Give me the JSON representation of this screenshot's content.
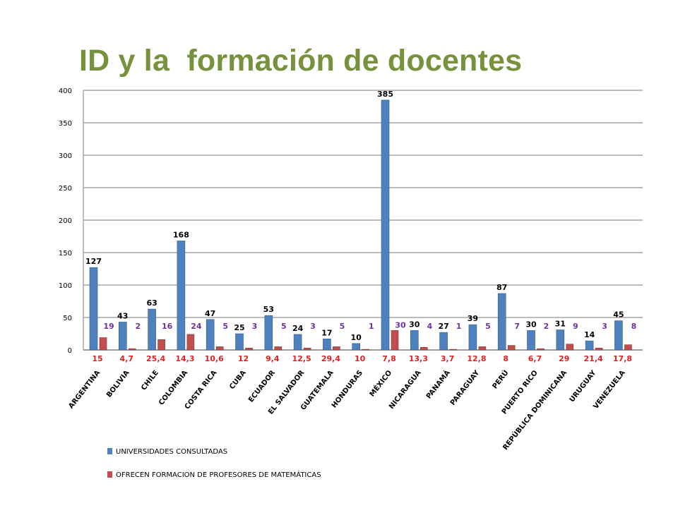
{
  "slide": {
    "title": "ID y la  formación de docentes"
  },
  "chart_data": {
    "type": "bar",
    "ylim": [
      0,
      400
    ],
    "yticks": [
      0,
      50,
      100,
      150,
      200,
      250,
      300,
      350,
      400
    ],
    "grid": true,
    "legend_position": "bottom-left",
    "categories": [
      "ARGENTINA",
      "BOLIVIA",
      "CHILE",
      "COLOMBIA",
      "COSTA RICA",
      "CUBA",
      "ECUADOR",
      "EL SALVADOR",
      "GUATEMALA",
      "HONDURAS",
      "MÉXICO",
      "NICARAGUA",
      "PANAMÁ",
      "PARAGUAY",
      "PERÚ",
      "PUERTO RICO",
      "REPÚBLICA DOMINICANA",
      "URUGUAY",
      "VENEZUELA"
    ],
    "series": [
      {
        "name": "UNIVERSIDADES  CONSULTADAS",
        "color": "#4f81bd",
        "values": [
          127,
          43,
          63,
          168,
          47,
          25,
          53,
          24,
          17,
          10,
          385,
          30,
          27,
          39,
          87,
          30,
          31,
          14,
          45
        ]
      },
      {
        "name": "OFRECEN FORMACION DE PROFESORES DE MATEMÁTICAS",
        "color": "#c0504d",
        "values": [
          19,
          2,
          16,
          24,
          5,
          3,
          5,
          3,
          5,
          1,
          30,
          4,
          1,
          5,
          7,
          2,
          9,
          3,
          8
        ]
      }
    ],
    "percent_labels": [
      "15",
      "4,7",
      "25,4",
      "14,3",
      "10,6",
      "12",
      "9,4",
      "12,5",
      "29,4",
      "10",
      "7,8",
      "13,3",
      "3,7",
      "12,8",
      "8",
      "6,7",
      "29",
      "21,4",
      "17,8"
    ],
    "percent_color": "#e02020",
    "count_label_color": "#7030a0"
  }
}
